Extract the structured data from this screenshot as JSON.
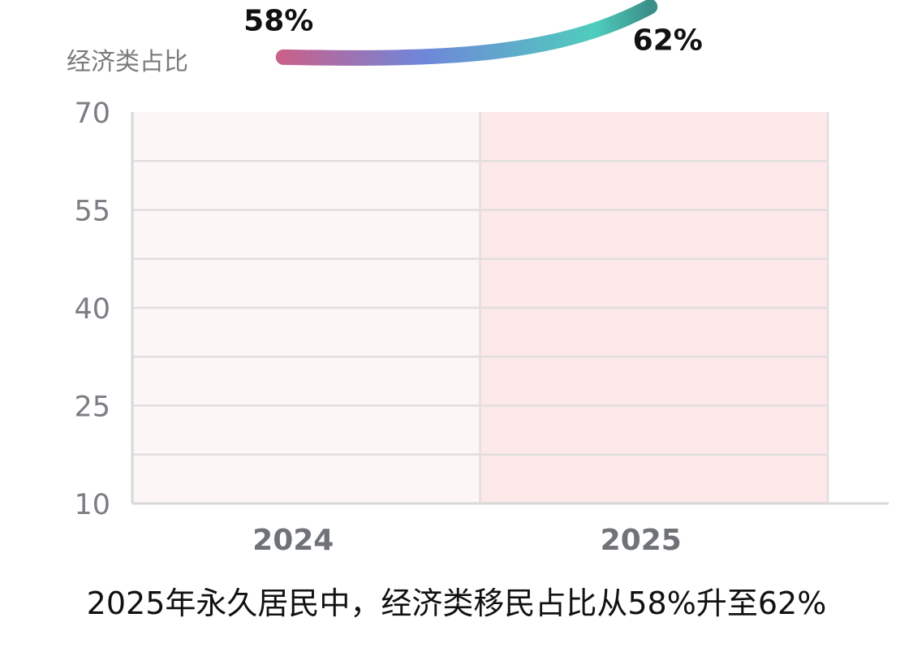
{
  "caption": "2025年永久居民中，经济类移民占比从58%升至62%",
  "chart_data": {
    "type": "line",
    "title": "",
    "ylabel": "经济类占比",
    "xlabel": "",
    "categories": [
      "2024",
      "2025"
    ],
    "y_ticks": [
      "70",
      "55",
      "40",
      "25",
      "10"
    ],
    "ylim": [
      10,
      70
    ],
    "grid": true,
    "series": [
      {
        "values": [
          58,
          62
        ],
        "labels": [
          "58%",
          "62%"
        ]
      }
    ],
    "colors": {
      "band_2024": "#fdf6f6",
      "band_2025": "#fde9e9",
      "grid": "#e2dede",
      "axis": "#d8d8d8",
      "line_start": "#c8618c",
      "line_mid": "#6f86da",
      "line_end_mid": "#4fcdbd",
      "line_end": "#3a8f89"
    }
  }
}
